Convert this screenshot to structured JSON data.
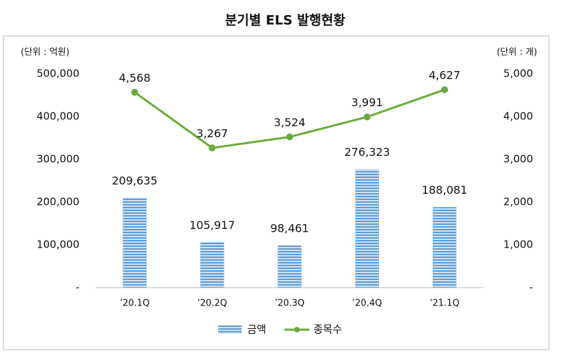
{
  "chart_data": {
    "type": "bar",
    "title": "분기별 ELS 발행현황",
    "y_unit": "(단위 : 억원)",
    "y2_unit": "(단위 : 개)",
    "categories": [
      "’20.1Q",
      "’20.2Q",
      "’20.3Q",
      "’20.4Q",
      "’21.1Q"
    ],
    "series": [
      {
        "name": "금액",
        "type": "bar",
        "color": "#5b9bd5",
        "values": [
          209635,
          105917,
          98461,
          276323,
          188081
        ],
        "value_labels": [
          "209,635",
          "105,917",
          "98,461",
          "276,323",
          "188,081"
        ]
      },
      {
        "name": "종목수",
        "type": "line",
        "axis": "y2",
        "color": "#6aab3c",
        "values": [
          4568,
          3267,
          3524,
          3991,
          4627
        ],
        "value_labels": [
          "4,568",
          "3,267",
          "3,524",
          "3,991",
          "4,627"
        ]
      }
    ],
    "ylim": [
      0,
      500000
    ],
    "yticks": [
      {
        "value": 0,
        "label": "-"
      },
      {
        "value": 100000,
        "label": "100,000"
      },
      {
        "value": 200000,
        "label": "200,000"
      },
      {
        "value": 300000,
        "label": "300,000"
      },
      {
        "value": 400000,
        "label": "400,000"
      },
      {
        "value": 500000,
        "label": "500,000"
      }
    ],
    "y2lim": [
      0,
      5000
    ],
    "y2ticks": [
      {
        "value": 0,
        "label": "-"
      },
      {
        "value": 1000,
        "label": "1,000"
      },
      {
        "value": 2000,
        "label": "2,000"
      },
      {
        "value": 3000,
        "label": "3,000"
      },
      {
        "value": 4000,
        "label": "4,000"
      },
      {
        "value": 5000,
        "label": "5,000"
      }
    ],
    "grid": false,
    "legend": "bottom"
  }
}
